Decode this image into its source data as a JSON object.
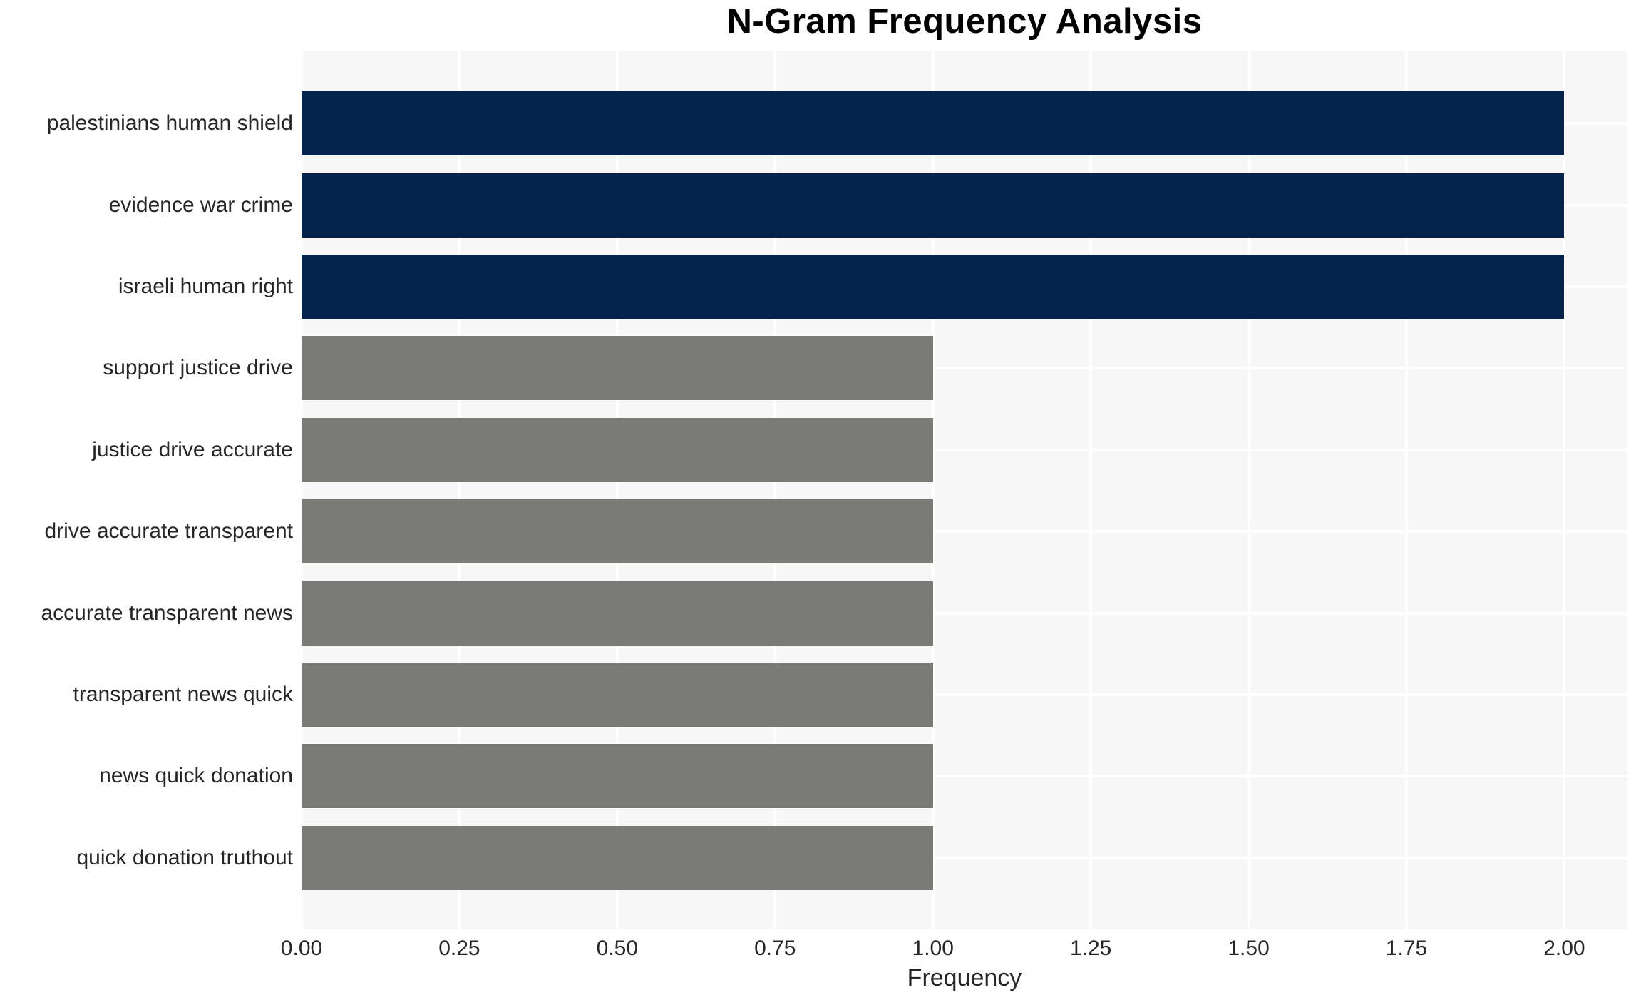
{
  "chart": {
    "title": "N-Gram Frequency Analysis",
    "xlabel": "Frequency"
  },
  "chart_data": {
    "type": "bar",
    "orientation": "horizontal",
    "title": "N-Gram Frequency Analysis",
    "xlabel": "Frequency",
    "ylabel": "",
    "categories": [
      "palestinians human shield",
      "evidence war crime",
      "israeli human right",
      "support justice drive",
      "justice drive accurate",
      "drive accurate transparent",
      "accurate transparent news",
      "transparent news quick",
      "news quick donation",
      "quick donation truthout"
    ],
    "values": [
      2,
      2,
      2,
      1,
      1,
      1,
      1,
      1,
      1,
      1
    ],
    "bar_colors": [
      "#03234c",
      "#03234c",
      "#03234c",
      "#7a7a76",
      "#7a7a76",
      "#7a7a76",
      "#7a7a76",
      "#7a7a76",
      "#7a7a76",
      "#7a7a76"
    ],
    "xlim": [
      0,
      2.1
    ],
    "xticks": [
      0,
      0.25,
      0.5,
      0.75,
      1,
      1.25,
      1.5,
      1.75,
      2
    ],
    "xtick_labels": [
      "0.00",
      "0.25",
      "0.50",
      "0.75",
      "1.00",
      "1.25",
      "1.50",
      "1.75",
      "2.00"
    ],
    "grid": true,
    "legend": false
  },
  "style": {
    "plot_background": "#f7f7f7",
    "figure_background": "#ffffff",
    "grid_color": "#ffffff",
    "tick_text_color": "#262626",
    "title_color": "#000000"
  }
}
